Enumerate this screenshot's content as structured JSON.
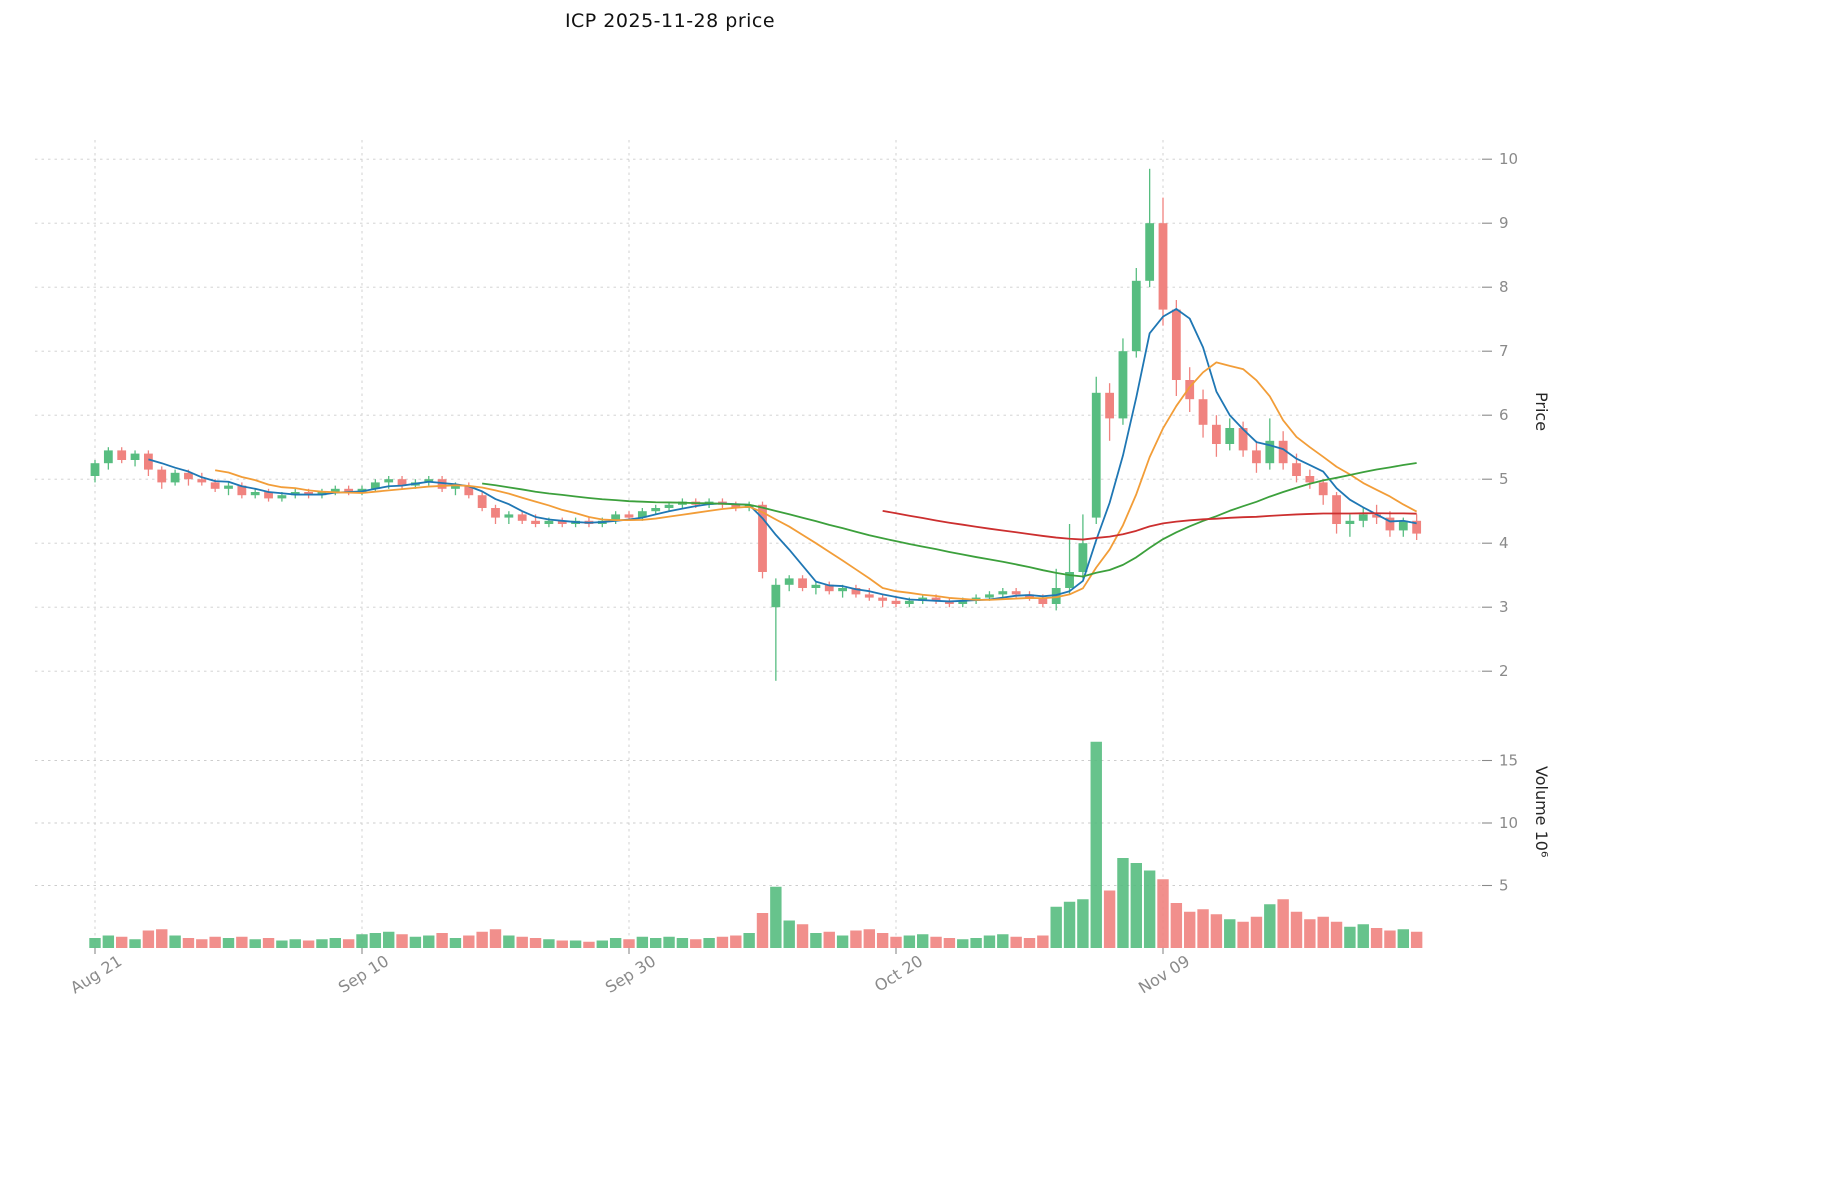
{
  "title": "ICP  2025-11-28  price",
  "axes": {
    "price_axis_label": "Price",
    "volume_axis_label": "Volume  10⁶",
    "price_ticks": [
      2,
      3,
      4,
      5,
      6,
      7,
      8,
      9,
      10
    ],
    "volume_ticks": [
      5,
      10,
      15
    ],
    "x_ticks": [
      {
        "index": 0,
        "label": "Aug 21"
      },
      {
        "index": 20,
        "label": "Sep 10"
      },
      {
        "index": 40,
        "label": "Sep 30"
      },
      {
        "index": 60,
        "label": "Oct 20"
      },
      {
        "index": 80,
        "label": "Nov 09"
      }
    ]
  },
  "style": {
    "up_color": "#57bd80",
    "down_color": "#f0837f",
    "grid_color": "#cdcdcd",
    "tick_text_color": "#8a8a8a",
    "title_color": "#111111",
    "background": "#ffffff"
  },
  "chart_data": {
    "type": "candlestick",
    "symbol": "ICP",
    "as_of_date": "2025-11-28",
    "price_ylim": [
      1.55,
      10.3
    ],
    "volume_ylim": [
      0,
      17.6
    ],
    "moving_averages": [
      5,
      10,
      30,
      60
    ],
    "ma_colors": {
      "5": "#1f77b4",
      "10": "#f29d38",
      "30": "#3ca03c",
      "60": "#cc2f2f"
    },
    "columns": [
      "date",
      "open",
      "high",
      "low",
      "close",
      "volume_millions"
    ],
    "rows": [
      [
        "2025-08-21",
        5.05,
        5.3,
        4.95,
        5.25,
        0.8
      ],
      [
        "2025-08-22",
        5.25,
        5.5,
        5.15,
        5.45,
        1.0
      ],
      [
        "2025-08-23",
        5.45,
        5.5,
        5.25,
        5.3,
        0.9
      ],
      [
        "2025-08-24",
        5.3,
        5.45,
        5.2,
        5.4,
        0.7
      ],
      [
        "2025-08-25",
        5.4,
        5.45,
        5.05,
        5.15,
        1.4
      ],
      [
        "2025-08-26",
        5.15,
        5.2,
        4.85,
        4.95,
        1.5
      ],
      [
        "2025-08-27",
        4.95,
        5.15,
        4.9,
        5.1,
        1.0
      ],
      [
        "2025-08-28",
        5.1,
        5.15,
        4.9,
        5.0,
        0.8
      ],
      [
        "2025-08-29",
        5.0,
        5.1,
        4.9,
        4.95,
        0.7
      ],
      [
        "2025-08-30",
        4.95,
        5.0,
        4.8,
        4.85,
        0.9
      ],
      [
        "2025-08-31",
        4.85,
        4.95,
        4.75,
        4.9,
        0.8
      ],
      [
        "2025-09-01",
        4.9,
        4.95,
        4.7,
        4.75,
        0.9
      ],
      [
        "2025-09-02",
        4.75,
        4.85,
        4.7,
        4.8,
        0.7
      ],
      [
        "2025-09-03",
        4.8,
        4.85,
        4.65,
        4.7,
        0.8
      ],
      [
        "2025-09-04",
        4.7,
        4.8,
        4.65,
        4.75,
        0.6
      ],
      [
        "2025-09-05",
        4.75,
        4.85,
        4.7,
        4.8,
        0.7
      ],
      [
        "2025-09-06",
        4.8,
        4.85,
        4.7,
        4.75,
        0.6
      ],
      [
        "2025-09-07",
        4.75,
        4.85,
        4.7,
        4.8,
        0.7
      ],
      [
        "2025-09-08",
        4.8,
        4.9,
        4.75,
        4.85,
        0.8
      ],
      [
        "2025-09-09",
        4.85,
        4.9,
        4.75,
        4.8,
        0.7
      ],
      [
        "2025-09-10",
        4.8,
        4.9,
        4.75,
        4.85,
        1.1
      ],
      [
        "2025-09-11",
        4.85,
        5.0,
        4.8,
        4.95,
        1.2
      ],
      [
        "2025-09-12",
        4.95,
        5.05,
        4.85,
        5.0,
        1.3
      ],
      [
        "2025-09-13",
        5.0,
        5.05,
        4.85,
        4.9,
        1.1
      ],
      [
        "2025-09-14",
        4.9,
        5.0,
        4.85,
        4.95,
        0.9
      ],
      [
        "2025-09-15",
        4.95,
        5.05,
        4.9,
        5.0,
        1.0
      ],
      [
        "2025-09-16",
        5.0,
        5.05,
        4.8,
        4.85,
        1.2
      ],
      [
        "2025-09-17",
        4.85,
        4.95,
        4.75,
        4.9,
        0.8
      ],
      [
        "2025-09-18",
        4.9,
        4.95,
        4.7,
        4.75,
        1.0
      ],
      [
        "2025-09-19",
        4.75,
        4.8,
        4.5,
        4.55,
        1.3
      ],
      [
        "2025-09-20",
        4.55,
        4.6,
        4.3,
        4.4,
        1.5
      ],
      [
        "2025-09-21",
        4.4,
        4.5,
        4.3,
        4.45,
        1.0
      ],
      [
        "2025-09-22",
        4.45,
        4.5,
        4.3,
        4.35,
        0.9
      ],
      [
        "2025-09-23",
        4.35,
        4.45,
        4.25,
        4.3,
        0.8
      ],
      [
        "2025-09-24",
        4.3,
        4.4,
        4.25,
        4.35,
        0.7
      ],
      [
        "2025-09-25",
        4.35,
        4.4,
        4.25,
        4.3,
        0.6
      ],
      [
        "2025-09-26",
        4.3,
        4.4,
        4.25,
        4.35,
        0.6
      ],
      [
        "2025-09-27",
        4.35,
        4.4,
        4.25,
        4.3,
        0.5
      ],
      [
        "2025-09-28",
        4.3,
        4.4,
        4.25,
        4.35,
        0.6
      ],
      [
        "2025-09-29",
        4.35,
        4.5,
        4.3,
        4.45,
        0.8
      ],
      [
        "2025-09-30",
        4.45,
        4.5,
        4.35,
        4.4,
        0.7
      ],
      [
        "2025-10-01",
        4.4,
        4.55,
        4.35,
        4.5,
        0.9
      ],
      [
        "2025-10-02",
        4.5,
        4.6,
        4.45,
        4.55,
        0.8
      ],
      [
        "2025-10-03",
        4.55,
        4.65,
        4.5,
        4.6,
        0.9
      ],
      [
        "2025-10-04",
        4.6,
        4.7,
        4.55,
        4.65,
        0.8
      ],
      [
        "2025-10-05",
        4.65,
        4.7,
        4.55,
        4.6,
        0.7
      ],
      [
        "2025-10-06",
        4.6,
        4.7,
        4.55,
        4.65,
        0.8
      ],
      [
        "2025-10-07",
        4.65,
        4.7,
        4.55,
        4.6,
        0.9
      ],
      [
        "2025-10-08",
        4.6,
        4.65,
        4.5,
        4.55,
        1.0
      ],
      [
        "2025-10-09",
        4.55,
        4.65,
        4.5,
        4.6,
        1.2
      ],
      [
        "2025-10-10",
        4.6,
        4.65,
        3.45,
        3.55,
        2.8
      ],
      [
        "2025-10-11",
        3.0,
        3.45,
        1.85,
        3.35,
        4.9
      ],
      [
        "2025-10-12",
        3.35,
        3.5,
        3.25,
        3.45,
        2.2
      ],
      [
        "2025-10-13",
        3.45,
        3.5,
        3.25,
        3.3,
        1.9
      ],
      [
        "2025-10-14",
        3.3,
        3.4,
        3.2,
        3.35,
        1.2
      ],
      [
        "2025-10-15",
        3.35,
        3.4,
        3.2,
        3.25,
        1.3
      ],
      [
        "2025-10-16",
        3.25,
        3.35,
        3.15,
        3.3,
        1.0
      ],
      [
        "2025-10-17",
        3.3,
        3.35,
        3.15,
        3.2,
        1.4
      ],
      [
        "2025-10-18",
        3.2,
        3.3,
        3.1,
        3.15,
        1.5
      ],
      [
        "2025-10-19",
        3.15,
        3.2,
        3.0,
        3.1,
        1.2
      ],
      [
        "2025-10-20",
        3.1,
        3.15,
        3.0,
        3.05,
        0.9
      ],
      [
        "2025-10-21",
        3.05,
        3.15,
        3.0,
        3.1,
        1.0
      ],
      [
        "2025-10-22",
        3.1,
        3.2,
        3.05,
        3.15,
        1.1
      ],
      [
        "2025-10-23",
        3.15,
        3.2,
        3.05,
        3.1,
        0.9
      ],
      [
        "2025-10-24",
        3.1,
        3.15,
        3.0,
        3.05,
        0.8
      ],
      [
        "2025-10-25",
        3.05,
        3.15,
        3.0,
        3.1,
        0.7
      ],
      [
        "2025-10-26",
        3.1,
        3.2,
        3.05,
        3.15,
        0.8
      ],
      [
        "2025-10-27",
        3.15,
        3.25,
        3.1,
        3.2,
        1.0
      ],
      [
        "2025-10-28",
        3.2,
        3.3,
        3.15,
        3.25,
        1.1
      ],
      [
        "2025-10-29",
        3.25,
        3.3,
        3.15,
        3.2,
        0.9
      ],
      [
        "2025-10-30",
        3.2,
        3.25,
        3.1,
        3.15,
        0.8
      ],
      [
        "2025-10-31",
        3.15,
        3.2,
        3.0,
        3.05,
        1.0
      ],
      [
        "2025-11-01",
        3.05,
        3.6,
        2.95,
        3.3,
        3.3
      ],
      [
        "2025-11-02",
        3.3,
        4.3,
        3.2,
        3.55,
        3.7
      ],
      [
        "2025-11-03",
        3.55,
        4.45,
        3.45,
        4.0,
        3.9
      ],
      [
        "2025-11-04",
        4.4,
        6.6,
        4.3,
        6.35,
        16.5
      ],
      [
        "2025-11-05",
        6.35,
        6.5,
        5.6,
        5.95,
        4.6
      ],
      [
        "2025-11-06",
        5.95,
        7.2,
        5.85,
        7.0,
        7.2
      ],
      [
        "2025-11-07",
        7.0,
        8.3,
        6.9,
        8.1,
        6.8
      ],
      [
        "2025-11-08",
        8.1,
        9.85,
        8.0,
        9.0,
        6.2
      ],
      [
        "2025-11-09",
        9.0,
        9.4,
        7.4,
        7.65,
        5.5
      ],
      [
        "2025-11-10",
        7.65,
        7.8,
        6.3,
        6.55,
        3.6
      ],
      [
        "2025-11-11",
        6.55,
        6.75,
        6.05,
        6.25,
        2.9
      ],
      [
        "2025-11-12",
        6.25,
        6.4,
        5.65,
        5.85,
        3.1
      ],
      [
        "2025-11-13",
        5.85,
        6.0,
        5.35,
        5.55,
        2.7
      ],
      [
        "2025-11-14",
        5.55,
        5.95,
        5.45,
        5.8,
        2.3
      ],
      [
        "2025-11-15",
        5.8,
        5.9,
        5.35,
        5.45,
        2.1
      ],
      [
        "2025-11-16",
        5.45,
        5.6,
        5.1,
        5.25,
        2.5
      ],
      [
        "2025-11-17",
        5.25,
        5.95,
        5.15,
        5.6,
        3.5
      ],
      [
        "2025-11-18",
        5.6,
        5.75,
        5.15,
        5.25,
        3.9
      ],
      [
        "2025-11-19",
        5.25,
        5.4,
        4.95,
        5.05,
        2.9
      ],
      [
        "2025-11-20",
        5.05,
        5.15,
        4.85,
        4.95,
        2.3
      ],
      [
        "2025-11-21",
        4.95,
        5.0,
        4.6,
        4.75,
        2.5
      ],
      [
        "2025-11-22",
        4.75,
        4.8,
        4.15,
        4.3,
        2.1
      ],
      [
        "2025-11-23",
        4.3,
        4.45,
        4.1,
        4.35,
        1.7
      ],
      [
        "2025-11-24",
        4.35,
        4.55,
        4.25,
        4.45,
        1.9
      ],
      [
        "2025-11-25",
        4.45,
        4.6,
        4.3,
        4.4,
        1.6
      ],
      [
        "2025-11-26",
        4.4,
        4.5,
        4.1,
        4.2,
        1.4
      ],
      [
        "2025-11-27",
        4.2,
        4.4,
        4.1,
        4.35,
        1.5
      ],
      [
        "2025-11-28",
        4.35,
        4.45,
        4.05,
        4.15,
        1.3
      ]
    ]
  }
}
